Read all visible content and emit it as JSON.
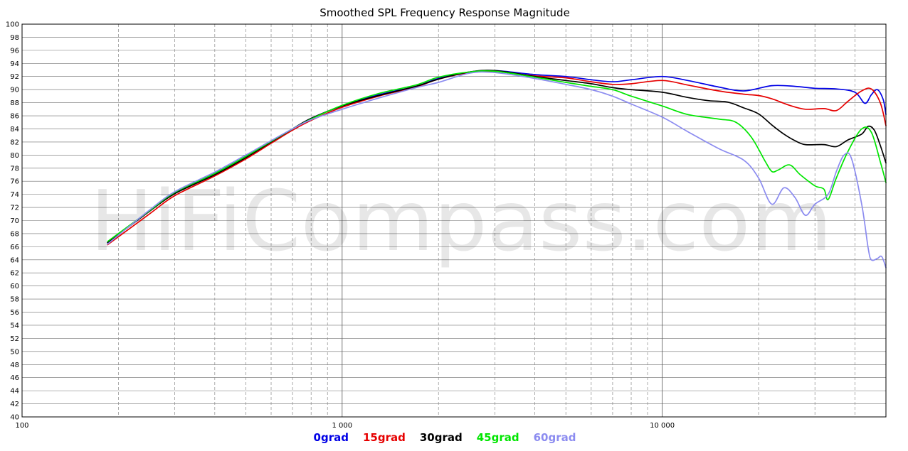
{
  "chart_data": {
    "type": "line",
    "title": "Smoothed SPL Frequency Response Magnitude",
    "watermark": "HiFiCompass.com",
    "x_scale": "log",
    "xlim": [
      100,
      50000
    ],
    "ylim": [
      40,
      100
    ],
    "grid": true,
    "x_ticks": [
      {
        "value": 100,
        "label": "100"
      },
      {
        "value": 1000,
        "label": "1 000"
      },
      {
        "value": 10000,
        "label": "10 000"
      }
    ],
    "y_tick_step": 2,
    "legend_placement": "bottom",
    "series": [
      {
        "name": "0grad",
        "color": "#0000e6",
        "points": [
          [
            185,
            66.6
          ],
          [
            250,
            71.5
          ],
          [
            300,
            74.2
          ],
          [
            400,
            77.2
          ],
          [
            500,
            79.8
          ],
          [
            600,
            82.1
          ],
          [
            700,
            84.0
          ],
          [
            800,
            85.6
          ],
          [
            1000,
            87.5
          ],
          [
            1300,
            89.2
          ],
          [
            1700,
            90.5
          ],
          [
            2000,
            91.7
          ],
          [
            2500,
            92.7
          ],
          [
            3000,
            92.9
          ],
          [
            4000,
            92.3
          ],
          [
            5000,
            92.0
          ],
          [
            6000,
            91.5
          ],
          [
            7000,
            91.2
          ],
          [
            8000,
            91.5
          ],
          [
            10000,
            92.0
          ],
          [
            12000,
            91.4
          ],
          [
            15000,
            90.4
          ],
          [
            18000,
            89.8
          ],
          [
            22000,
            90.6
          ],
          [
            26000,
            90.5
          ],
          [
            30000,
            90.2
          ],
          [
            35000,
            90.1
          ],
          [
            40000,
            89.6
          ],
          [
            43000,
            87.9
          ],
          [
            45000,
            89.2
          ],
          [
            47000,
            90.0
          ],
          [
            49000,
            88.5
          ],
          [
            50000,
            86.2
          ]
        ]
      },
      {
        "name": "15grad",
        "color": "#e60000",
        "points": [
          [
            185,
            66.3
          ],
          [
            250,
            71.0
          ],
          [
            300,
            73.8
          ],
          [
            400,
            76.8
          ],
          [
            500,
            79.4
          ],
          [
            600,
            81.8
          ],
          [
            700,
            83.8
          ],
          [
            800,
            85.3
          ],
          [
            1000,
            87.3
          ],
          [
            1300,
            89.0
          ],
          [
            1700,
            90.4
          ],
          [
            2000,
            91.6
          ],
          [
            2500,
            92.6
          ],
          [
            3000,
            92.8
          ],
          [
            4000,
            92.1
          ],
          [
            5000,
            91.8
          ],
          [
            6000,
            91.2
          ],
          [
            7000,
            90.8
          ],
          [
            8000,
            90.9
          ],
          [
            10000,
            91.4
          ],
          [
            12000,
            90.7
          ],
          [
            15000,
            89.8
          ],
          [
            18000,
            89.3
          ],
          [
            20000,
            89.1
          ],
          [
            22000,
            88.6
          ],
          [
            25000,
            87.6
          ],
          [
            28000,
            87.0
          ],
          [
            32000,
            87.1
          ],
          [
            35000,
            86.8
          ],
          [
            38000,
            88.2
          ],
          [
            42000,
            89.8
          ],
          [
            45000,
            90.1
          ],
          [
            48000,
            88.0
          ],
          [
            50000,
            84.5
          ]
        ]
      },
      {
        "name": "30grad",
        "color": "#000000",
        "points": [
          [
            185,
            66.6
          ],
          [
            250,
            71.4
          ],
          [
            300,
            74.1
          ],
          [
            400,
            77.0
          ],
          [
            500,
            79.6
          ],
          [
            600,
            82.0
          ],
          [
            700,
            84.0
          ],
          [
            800,
            85.6
          ],
          [
            1000,
            87.5
          ],
          [
            1300,
            89.1
          ],
          [
            1700,
            90.5
          ],
          [
            2000,
            91.6
          ],
          [
            2500,
            92.7
          ],
          [
            3000,
            92.9
          ],
          [
            4000,
            92.0
          ],
          [
            5000,
            91.4
          ],
          [
            6000,
            90.9
          ],
          [
            7000,
            90.3
          ],
          [
            8000,
            90.0
          ],
          [
            10000,
            89.6
          ],
          [
            12000,
            88.8
          ],
          [
            14000,
            88.3
          ],
          [
            16000,
            88.1
          ],
          [
            18000,
            87.2
          ],
          [
            20000,
            86.3
          ],
          [
            22000,
            84.6
          ],
          [
            24000,
            83.2
          ],
          [
            26000,
            82.2
          ],
          [
            28000,
            81.6
          ],
          [
            32000,
            81.6
          ],
          [
            35000,
            81.3
          ],
          [
            38000,
            82.3
          ],
          [
            42000,
            83.2
          ],
          [
            44000,
            84.4
          ],
          [
            46000,
            83.8
          ],
          [
            48000,
            81.5
          ],
          [
            50000,
            78.8
          ]
        ]
      },
      {
        "name": "45grad",
        "color": "#00e600",
        "points": [
          [
            185,
            66.8
          ],
          [
            250,
            71.5
          ],
          [
            300,
            74.3
          ],
          [
            400,
            77.2
          ],
          [
            500,
            79.8
          ],
          [
            600,
            82.1
          ],
          [
            700,
            84.0
          ],
          [
            800,
            85.5
          ],
          [
            1000,
            87.6
          ],
          [
            1300,
            89.4
          ],
          [
            1700,
            90.7
          ],
          [
            2000,
            91.9
          ],
          [
            2500,
            92.7
          ],
          [
            3000,
            92.8
          ],
          [
            4000,
            91.9
          ],
          [
            5000,
            91.1
          ],
          [
            6000,
            90.5
          ],
          [
            7000,
            90.0
          ],
          [
            8000,
            89.0
          ],
          [
            10000,
            87.5
          ],
          [
            12000,
            86.2
          ],
          [
            15000,
            85.5
          ],
          [
            17000,
            85.0
          ],
          [
            19000,
            82.7
          ],
          [
            21000,
            79.0
          ],
          [
            22000,
            77.5
          ],
          [
            23000,
            77.7
          ],
          [
            25000,
            78.5
          ],
          [
            27000,
            77.0
          ],
          [
            30000,
            75.3
          ],
          [
            32000,
            74.8
          ],
          [
            33000,
            73.2
          ],
          [
            35000,
            76.5
          ],
          [
            38000,
            80.5
          ],
          [
            42000,
            84.0
          ],
          [
            45000,
            83.5
          ],
          [
            48000,
            79.0
          ],
          [
            50000,
            75.8
          ]
        ]
      },
      {
        "name": "60grad",
        "color": "#8c8cf0",
        "points": [
          [
            185,
            66.4
          ],
          [
            250,
            71.6
          ],
          [
            300,
            74.4
          ],
          [
            400,
            77.4
          ],
          [
            500,
            80.0
          ],
          [
            600,
            82.2
          ],
          [
            700,
            84.0
          ],
          [
            800,
            85.4
          ],
          [
            1000,
            87.0
          ],
          [
            1300,
            88.7
          ],
          [
            1700,
            90.3
          ],
          [
            2000,
            91.1
          ],
          [
            2500,
            92.5
          ],
          [
            3000,
            92.6
          ],
          [
            4000,
            91.7
          ],
          [
            5000,
            90.8
          ],
          [
            6000,
            90.0
          ],
          [
            7000,
            89.0
          ],
          [
            8000,
            87.8
          ],
          [
            10000,
            85.8
          ],
          [
            12000,
            83.6
          ],
          [
            15000,
            81.0
          ],
          [
            18000,
            79.2
          ],
          [
            20000,
            76.5
          ],
          [
            22000,
            72.5
          ],
          [
            24000,
            75.0
          ],
          [
            26000,
            73.5
          ],
          [
            28000,
            70.8
          ],
          [
            30000,
            72.5
          ],
          [
            33000,
            74.0
          ],
          [
            35000,
            77.5
          ],
          [
            37000,
            80.0
          ],
          [
            39000,
            79.5
          ],
          [
            42000,
            72.5
          ],
          [
            44000,
            65.8
          ],
          [
            45000,
            64.0
          ],
          [
            47000,
            64.2
          ],
          [
            48500,
            64.5
          ],
          [
            50000,
            62.8
          ]
        ]
      }
    ]
  }
}
